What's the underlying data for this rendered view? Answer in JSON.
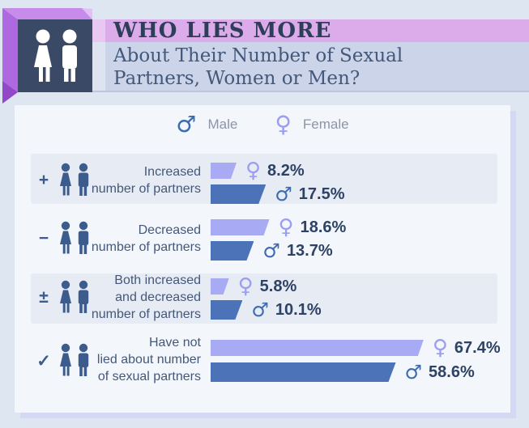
{
  "header": {
    "title": "WHO LIES MORE",
    "subtitle": "About Their Number of Sexual\nPartners, Women or Men?"
  },
  "legend": {
    "male": {
      "symbol": "♂",
      "label": "Male"
    },
    "female": {
      "symbol": "♀",
      "label": "Female"
    }
  },
  "rows": [
    {
      "symbol": "+",
      "label": "Increased\nnumber of partners",
      "female": {
        "value": 8.2,
        "display": "8.2%"
      },
      "male": {
        "value": 17.5,
        "display": "17.5%"
      }
    },
    {
      "symbol": "−",
      "label": "Decreased\nnumber of partners",
      "female": {
        "value": 18.6,
        "display": "18.6%"
      },
      "male": {
        "value": 13.7,
        "display": "13.7%"
      }
    },
    {
      "symbol": "±",
      "label": "Both increased\nand decreased\nnumber of partners",
      "female": {
        "value": 5.8,
        "display": "5.8%"
      },
      "male": {
        "value": 10.1,
        "display": "10.1%"
      }
    },
    {
      "symbol": "✓",
      "label": "Have not\nlied about number\nof sexual partners",
      "female": {
        "value": 67.4,
        "display": "67.4%"
      },
      "male": {
        "value": 58.6,
        "display": "58.6%"
      }
    }
  ],
  "colors": {
    "page_bg": "#dee6f2",
    "card_bg": "#f3f6fb",
    "panel_bg": "#e7ebf4",
    "title_band": "#dcabea",
    "subtitle_band": "#cbd4e9",
    "female_bar": "#a8aaf3",
    "male_bar": "#4c73b7",
    "female_symbol": "#9a9df0",
    "male_symbol": "#3d6bb0",
    "title_text": "#2c3e58",
    "label_text": "#44587a",
    "value_text": "#2d4264",
    "legend_text": "#8d95a6",
    "cube_front": "#3a4a66",
    "cube_top": "#c78ce9",
    "cube_left": "#af69e0",
    "cube_fold": "#9149c8"
  },
  "chart_data": {
    "type": "bar",
    "orientation": "horizontal",
    "title": "WHO LIES MORE About Their Number of Sexual Partners, Women or Men?",
    "categories": [
      "Increased number of partners",
      "Decreased number of partners",
      "Both increased and decreased number of partners",
      "Have not lied about number of sexual partners"
    ],
    "series": [
      {
        "name": "Female",
        "color": "#a8aaf3",
        "values": [
          8.2,
          18.6,
          5.8,
          67.4
        ]
      },
      {
        "name": "Male",
        "color": "#4c73b7",
        "values": [
          17.5,
          13.7,
          10.1,
          58.6
        ]
      }
    ],
    "unit": "%",
    "xlim": [
      0,
      100
    ],
    "legend_position": "top",
    "grid": false
  }
}
